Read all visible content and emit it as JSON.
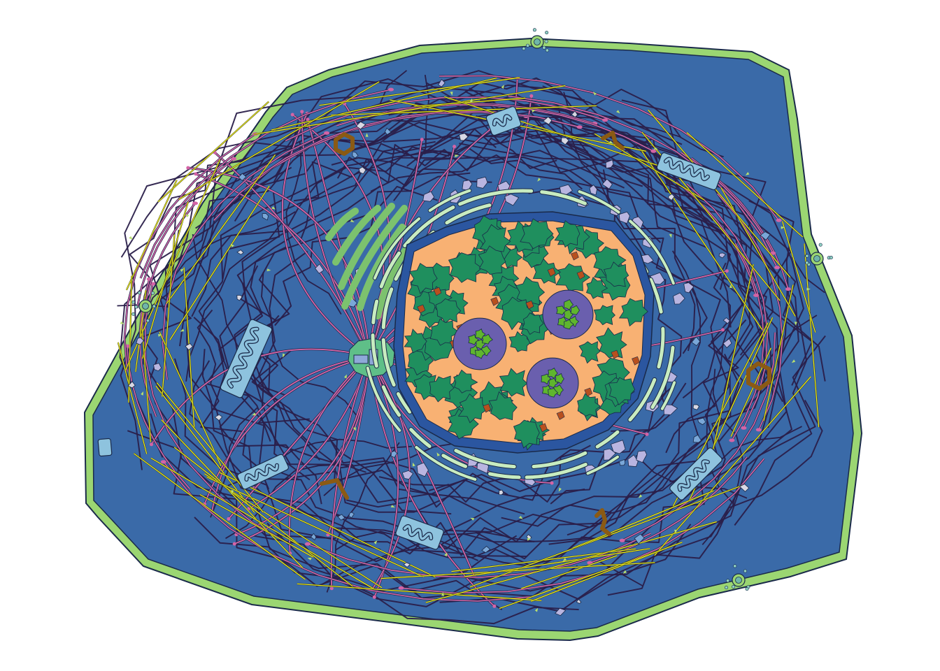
{
  "diagram": {
    "kind": "eukaryotic-cell-illustration",
    "labels": [],
    "colors": {
      "background": "#ffffff",
      "membrane": "#9bd672",
      "cytoplasm": "#3a6aa8",
      "outline": "#1a2a4a",
      "nucleus_fill": "#f8b173",
      "nuclear_envelope": "#2b56a0",
      "chromatin": "#1f8f5e",
      "nucleolus": "#6a5fae",
      "nucleolus_core": "#5fb52e",
      "er": "#c8ecc0",
      "golgi": "#7cc26e",
      "centrosome": "#5fbf88",
      "mitochondria": "#8ec3de",
      "microtubule": "#d464a6",
      "actin": "#f0f020",
      "intermediate_filament": "#2a1f4a",
      "vesicle_lilac": "#b9b5e0",
      "vesicle_white": "#d8d8e4",
      "vesicle_blue": "#7aa7d8",
      "granule_green": "#b8e070",
      "peroxisome": "#8b5a14",
      "ribosome_brown": "#b8501e"
    },
    "organelles": [
      "cell-membrane",
      "cytoplasm",
      "nucleus",
      "nuclear-envelope",
      "chromatin",
      "nucleolus",
      "endoplasmic-reticulum",
      "golgi-apparatus",
      "centrosome",
      "mitochondrion",
      "microtubule",
      "actin-filament",
      "intermediate-filament",
      "vesicle",
      "peroxisome",
      "exocytosis-site"
    ]
  }
}
